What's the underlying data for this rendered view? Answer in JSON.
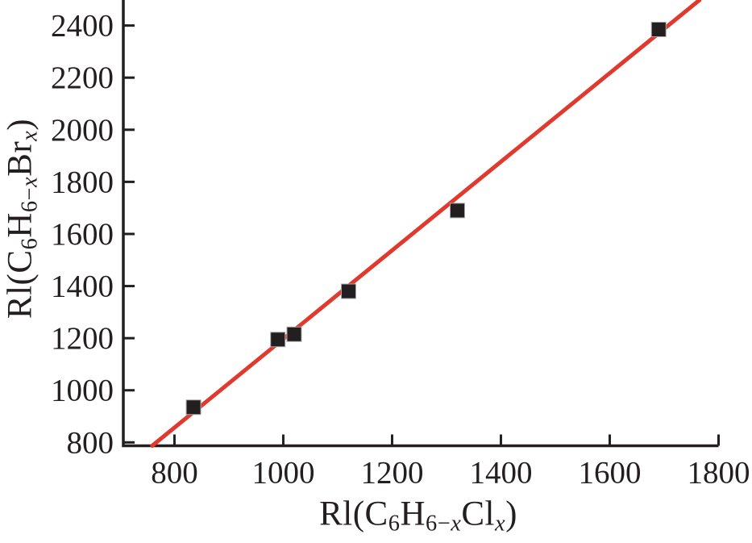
{
  "figure": {
    "background_color": "#ffffff",
    "axis_color": "#231f20",
    "text_color": "#231f20",
    "tick_font_px": 39
  },
  "chart_data": {
    "type": "scatter",
    "title": "",
    "xlabel": "Rl(C6H6−xClx)",
    "ylabel": "Rl(C6H6−xBrx)",
    "xlabel_parts": [
      {
        "t": "Rl(C"
      },
      {
        "t": "6"
      },
      {
        "t": "H"
      },
      {
        "t": "6−"
      },
      {
        "t": "x"
      },
      {
        "t": "Cl"
      },
      {
        "t": "x"
      },
      {
        "t": ")"
      }
    ],
    "ylabel_parts": [
      {
        "t": "Rl(C"
      },
      {
        "t": "6"
      },
      {
        "t": "H"
      },
      {
        "t": "6−"
      },
      {
        "t": "x"
      },
      {
        "t": "Br"
      },
      {
        "t": "x"
      },
      {
        "t": ")"
      }
    ],
    "xlim": [
      706,
      1800
    ],
    "ylim": [
      787,
      2498
    ],
    "x_ticks": [
      800,
      1000,
      1200,
      1400,
      1600,
      1800
    ],
    "y_ticks": [
      800,
      1000,
      1200,
      1400,
      1600,
      1800,
      2000,
      2200,
      2400
    ],
    "grid": false,
    "legend": "none",
    "series": [
      {
        "name": "fit-line",
        "type": "line",
        "color": "#e0392d",
        "line_width": 5,
        "points": [
          [
            759,
            787
          ],
          [
            1765,
            2498
          ]
        ]
      },
      {
        "name": "data-points",
        "type": "scatter",
        "marker": "square",
        "marker_size": 18,
        "marker_color": "#231f20",
        "marker_edge_color": "#aaaaaa",
        "points": [
          [
            835,
            935
          ],
          [
            990,
            1195
          ],
          [
            1020,
            1215
          ],
          [
            1120,
            1380
          ],
          [
            1320,
            1690
          ],
          [
            1690,
            2385
          ]
        ]
      }
    ]
  }
}
